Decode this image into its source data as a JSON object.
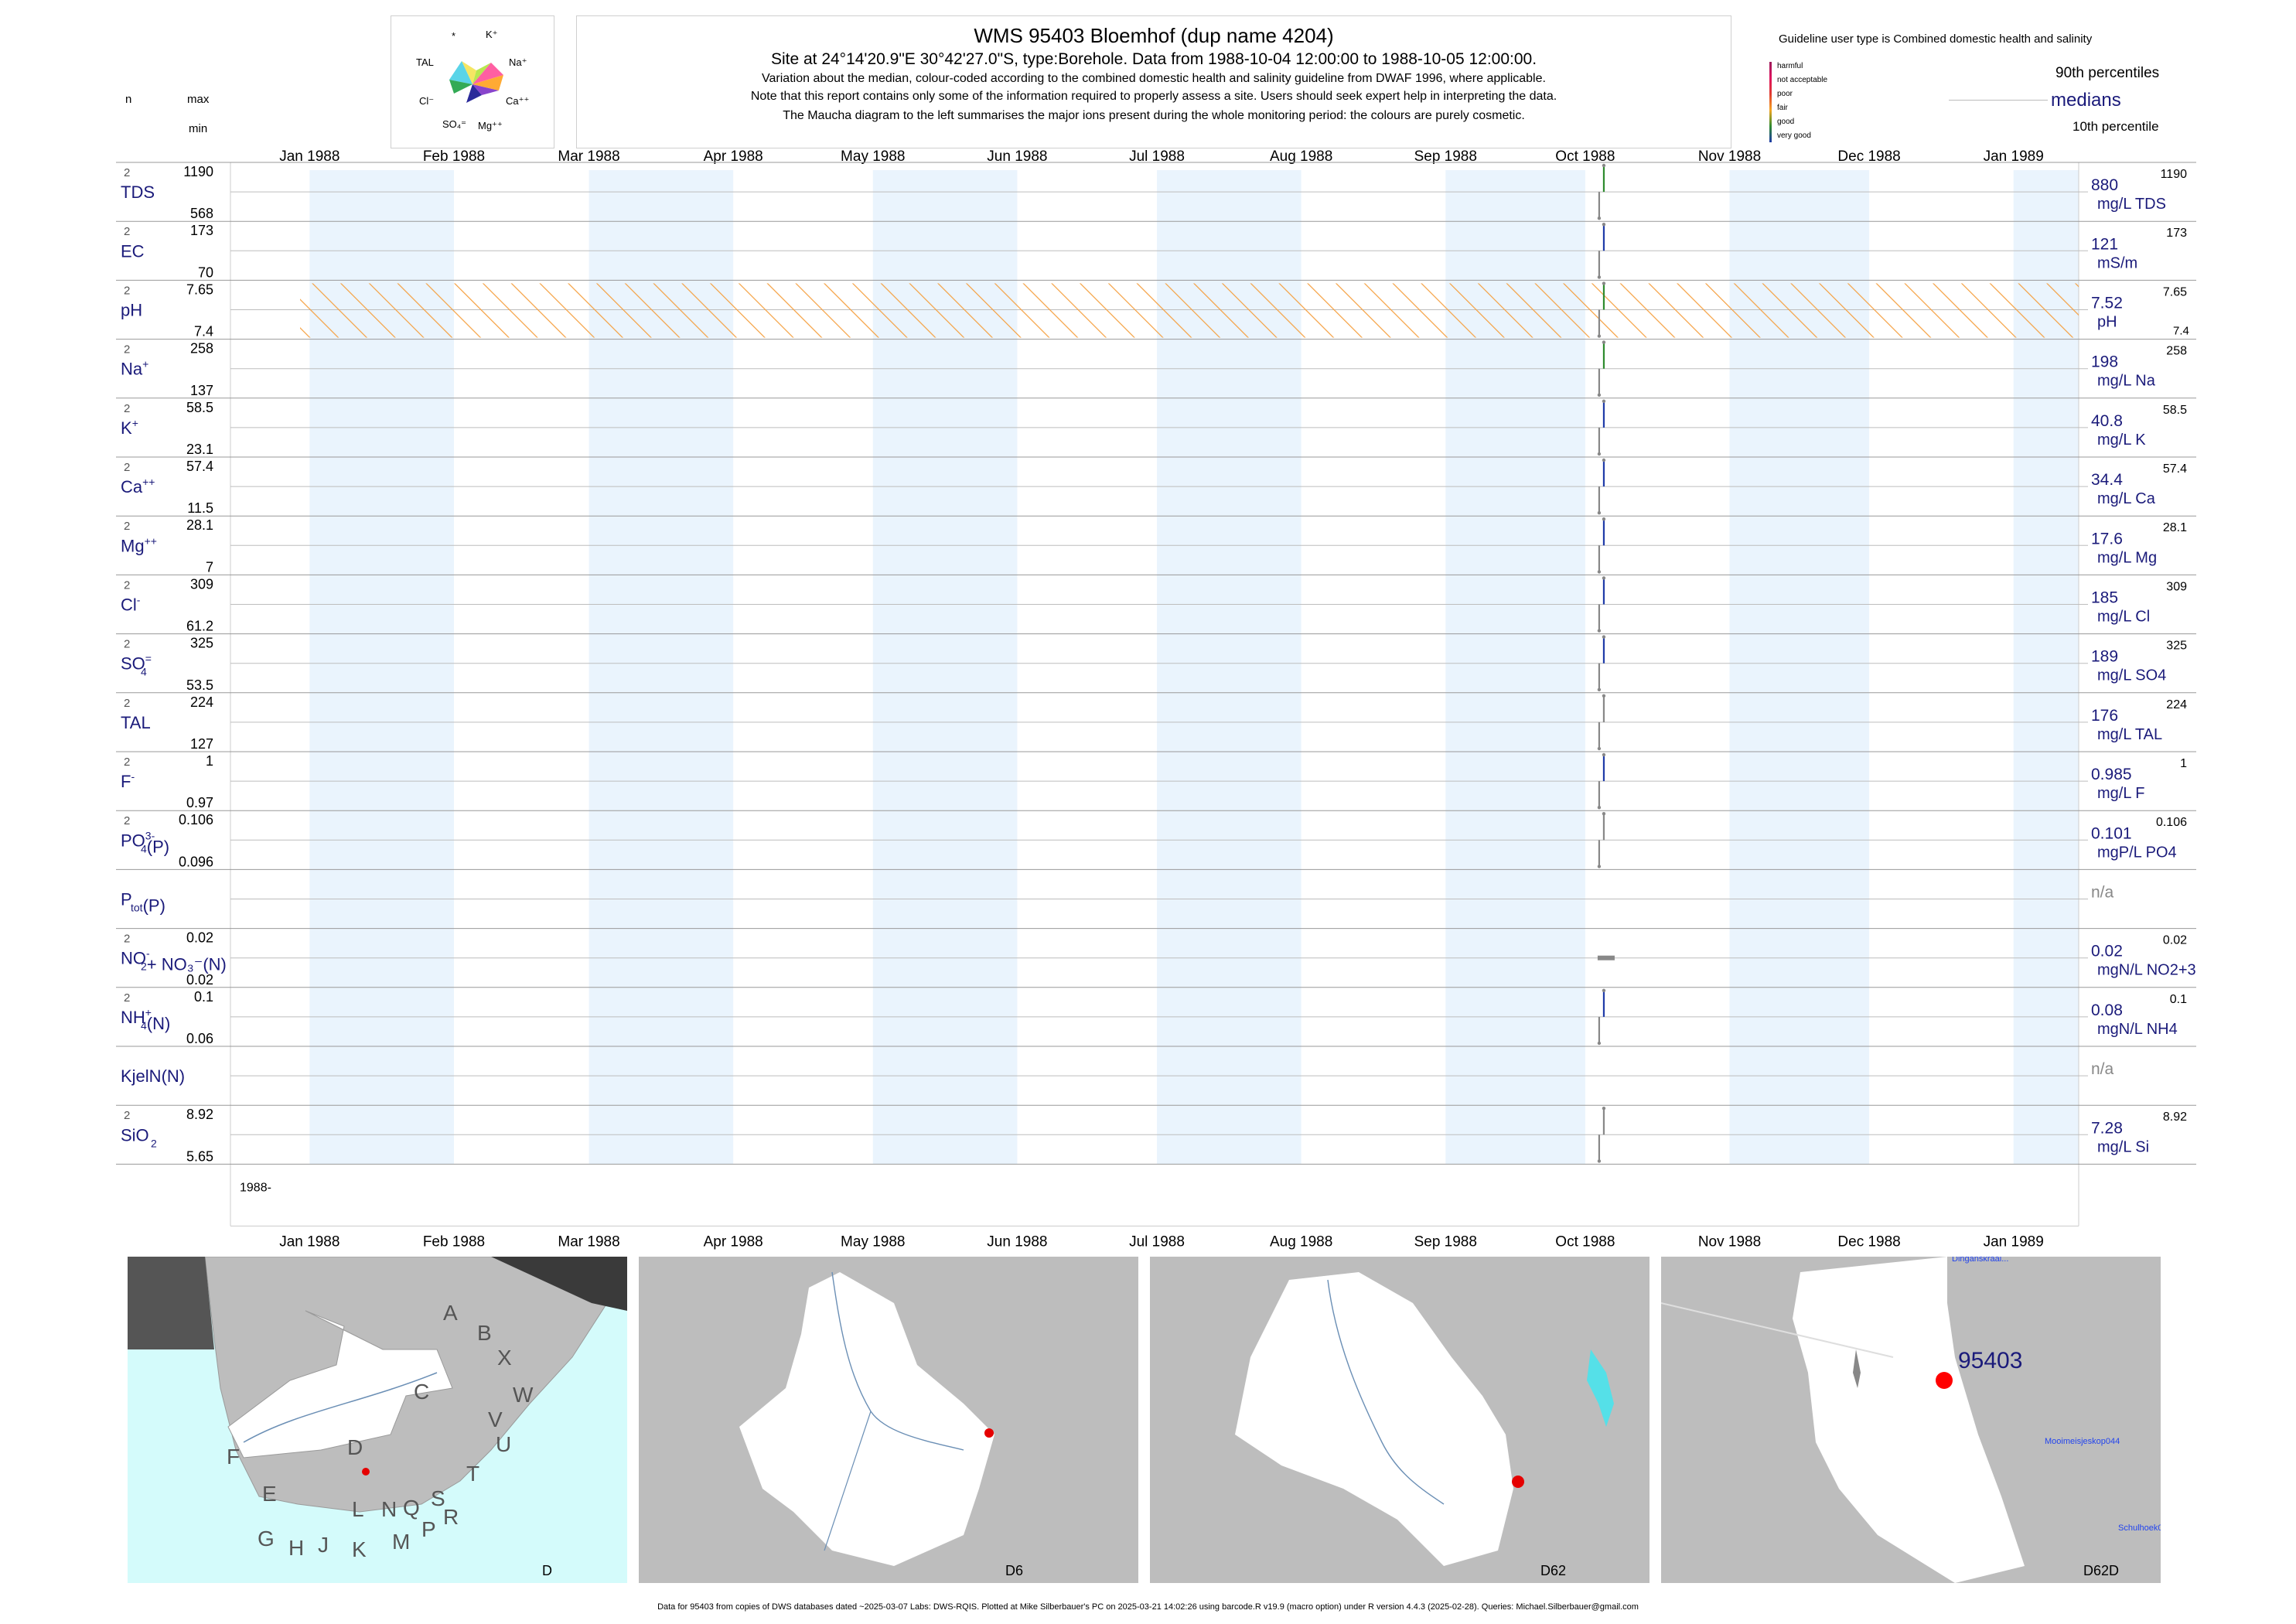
{
  "header": {
    "title": "WMS 95403  Bloemhof (dup name 4204)",
    "subtitle": "Site at 24°14'20.9\"E 30°42'27.0\"S, type:Borehole.  Data from 1988-10-04 12:00:00 to 1988-10-05 12:00:00.",
    "lines": [
      "Variation about the median,  colour-coded according to the combined domestic health and salinity guideline from DWAF 1996, where applicable.",
      "Note that this report contains only some of the information required to properly assess a site. Users should seek expert help in interpreting the data.",
      "The Maucha diagram to the left summarises the major ions present during the whole monitoring period: the colours are purely cosmetic."
    ]
  },
  "column_labels": {
    "n": "n",
    "max": "max",
    "min": "min"
  },
  "maucha": {
    "labels": [
      "*",
      "K⁺",
      "TAL",
      "Na⁺",
      "Cl⁻",
      "Ca⁺⁺",
      "SO₄⁼",
      "Mg⁺⁺"
    ],
    "colors": [
      "#f5e663",
      "#b8e84f",
      "#5ad4e8",
      "#ff5fa2",
      "#2a2a9a",
      "#33aa55",
      "#8844cc",
      "#ffaa33"
    ]
  },
  "legend": {
    "guideline_title": "Guideline user type is Combined domestic health and salinity",
    "classes": [
      {
        "label": "harmful",
        "color": "#9b1b5a"
      },
      {
        "label": "not acceptable",
        "color": "#e0115f"
      },
      {
        "label": "poor",
        "color": "#e03c31"
      },
      {
        "label": "fair",
        "color": "#f5a623"
      },
      {
        "label": "good",
        "color": "#2e8b2e"
      },
      {
        "label": "very good",
        "color": "#1f3ba8"
      }
    ],
    "p90": "90th percentiles",
    "median": "medians",
    "p10": "10th percentile"
  },
  "chart_data": {
    "type": "line",
    "x_axis": {
      "range": [
        "1987-12-15",
        "1989-01-15"
      ],
      "tick_labels": [
        "Jan 1988",
        "Feb 1988",
        "Mar 1988",
        "Apr 1988",
        "May 1988",
        "Jun 1988",
        "Jul 1988",
        "Aug 1988",
        "Sep 1988",
        "Oct 1988",
        "Nov 1988",
        "Dec 1988",
        "Jan 1989"
      ],
      "year_label": "1988-"
    },
    "series": [
      {
        "label": "TDS",
        "sup": "",
        "sub": "",
        "n": "2",
        "max": "1190",
        "min": "568",
        "median": "880",
        "unit": "mg/L TDS",
        "rmax": "1190",
        "rmin": "",
        "guide": "#2e8b2e",
        "hatch": false,
        "marker": "line",
        "points": [
          {
            "date": "1988-10-04",
            "value": 568
          },
          {
            "date": "1988-10-05",
            "value": 1190
          }
        ]
      },
      {
        "label": "EC",
        "sup": "",
        "sub": "",
        "n": "2",
        "max": "173",
        "min": "70",
        "median": "121",
        "unit": "mS/m",
        "rmax": "173",
        "rmin": "",
        "guide": "#1f3ba8",
        "hatch": false,
        "marker": "line",
        "points": [
          {
            "date": "1988-10-04",
            "value": 70
          },
          {
            "date": "1988-10-05",
            "value": 173
          }
        ]
      },
      {
        "label": "pH",
        "sup": "",
        "sub": "",
        "n": "2",
        "max": "7.65",
        "min": "7.4",
        "median": "7.52",
        "unit": "pH",
        "rmax": "7.65",
        "rmin": "7.4",
        "guide": "#2e8b2e",
        "hatch": true,
        "marker": "line",
        "points": [
          {
            "date": "1988-10-04",
            "value": 7.4
          },
          {
            "date": "1988-10-05",
            "value": 7.65
          }
        ]
      },
      {
        "label": "Na",
        "sup": "+",
        "sub": "",
        "n": "2",
        "max": "258",
        "min": "137",
        "median": "198",
        "unit": "mg/L Na",
        "rmax": "258",
        "rmin": "",
        "guide": "#2e8b2e",
        "hatch": false,
        "marker": "line",
        "points": [
          {
            "date": "1988-10-04",
            "value": 137
          },
          {
            "date": "1988-10-05",
            "value": 258
          }
        ]
      },
      {
        "label": "K",
        "sup": "+",
        "sub": "",
        "n": "2",
        "max": "58.5",
        "min": "23.1",
        "median": "40.8",
        "unit": "mg/L K",
        "rmax": "58.5",
        "rmin": "",
        "guide": "#1f3ba8",
        "hatch": false,
        "marker": "line",
        "points": [
          {
            "date": "1988-10-04",
            "value": 23.1
          },
          {
            "date": "1988-10-05",
            "value": 58.5
          }
        ]
      },
      {
        "label": "Ca",
        "sup": "++",
        "sub": "",
        "n": "2",
        "max": "57.4",
        "min": "11.5",
        "median": "34.4",
        "unit": "mg/L Ca",
        "rmax": "57.4",
        "rmin": "",
        "guide": "#1f3ba8",
        "hatch": false,
        "marker": "line",
        "points": [
          {
            "date": "1988-10-04",
            "value": 11.5
          },
          {
            "date": "1988-10-05",
            "value": 57.4
          }
        ]
      },
      {
        "label": "Mg",
        "sup": "++",
        "sub": "",
        "n": "2",
        "max": "28.1",
        "min": "7",
        "median": "17.6",
        "unit": "mg/L Mg",
        "rmax": "28.1",
        "rmin": "",
        "guide": "#1f3ba8",
        "hatch": false,
        "marker": "line",
        "points": [
          {
            "date": "1988-10-04",
            "value": 7
          },
          {
            "date": "1988-10-05",
            "value": 28.1
          }
        ]
      },
      {
        "label": "Cl",
        "sup": "-",
        "sub": "",
        "n": "2",
        "max": "309",
        "min": "61.2",
        "median": "185",
        "unit": "mg/L Cl",
        "rmax": "309",
        "rmin": "",
        "guide": "#1f3ba8",
        "hatch": false,
        "marker": "line",
        "points": [
          {
            "date": "1988-10-04",
            "value": 61.2
          },
          {
            "date": "1988-10-05",
            "value": 309
          }
        ]
      },
      {
        "label": "SO",
        "sup": "=",
        "sub": "4",
        "n": "2",
        "max": "325",
        "min": "53.5",
        "median": "189",
        "unit": "mg/L SO4",
        "rmax": "325",
        "rmin": "",
        "guide": "#1f3ba8",
        "hatch": false,
        "marker": "line",
        "points": [
          {
            "date": "1988-10-04",
            "value": 53.5
          },
          {
            "date": "1988-10-05",
            "value": 325
          }
        ]
      },
      {
        "label": "TAL",
        "sup": "",
        "sub": "",
        "n": "2",
        "max": "224",
        "min": "127",
        "median": "176",
        "unit": "mg/L TAL",
        "rmax": "224",
        "rmin": "",
        "guide": "#888888",
        "hatch": false,
        "marker": "line",
        "points": [
          {
            "date": "1988-10-04",
            "value": 127
          },
          {
            "date": "1988-10-05",
            "value": 224
          }
        ]
      },
      {
        "label": "F",
        "sup": "-",
        "sub": "",
        "n": "2",
        "max": "1",
        "min": "0.97",
        "median": "0.985",
        "unit": "mg/L F",
        "rmax": "1",
        "rmin": "",
        "guide": "#1f3ba8",
        "hatch": false,
        "marker": "line",
        "points": [
          {
            "date": "1988-10-04",
            "value": 0.97
          },
          {
            "date": "1988-10-05",
            "value": 1
          }
        ]
      },
      {
        "label": "PO",
        "sup": "3-",
        "sub": "4",
        "suffix": "(P)",
        "n": "2",
        "max": "0.106",
        "min": "0.096",
        "median": "0.101",
        "unit": "mgP/L PO4",
        "rmax": "0.106",
        "rmin": "",
        "guide": "#888888",
        "hatch": false,
        "marker": "line",
        "points": [
          {
            "date": "1988-10-04",
            "value": 0.096
          },
          {
            "date": "1988-10-05",
            "value": 0.106
          }
        ]
      },
      {
        "label": "P",
        "sup": "",
        "sub": "tot",
        "suffix": "(P)",
        "n": "",
        "max": "",
        "min": "",
        "median": "n/a",
        "unit": "",
        "rmax": "",
        "rmin": "",
        "guide": "#888888",
        "hatch": false,
        "marker": "none",
        "points": []
      },
      {
        "label": "NO",
        "sup": "-",
        "sub": "2",
        "suffix": "+ NO₃⁻(N)",
        "n": "2",
        "max": "0.02",
        "min": "0.02",
        "median": "0.02",
        "unit": "mgN/L NO2+3",
        "rmax": "0.02",
        "rmin": "",
        "guide": "#888888",
        "hatch": false,
        "marker": "flat",
        "points": [
          {
            "date": "1988-10-04",
            "value": 0.02
          },
          {
            "date": "1988-10-05",
            "value": 0.02
          }
        ]
      },
      {
        "label": "NH",
        "sup": "+",
        "sub": "4",
        "suffix": "(N)",
        "n": "2",
        "max": "0.1",
        "min": "0.06",
        "median": "0.08",
        "unit": "mgN/L NH4",
        "rmax": "0.1",
        "rmin": "",
        "guide": "#1f3ba8",
        "hatch": false,
        "marker": "line",
        "points": [
          {
            "date": "1988-10-04",
            "value": 0.06
          },
          {
            "date": "1988-10-05",
            "value": 0.1
          }
        ]
      },
      {
        "label": "KjelN(N)",
        "sup": "",
        "sub": "",
        "n": "",
        "max": "",
        "min": "",
        "median": "n/a",
        "unit": "",
        "rmax": "",
        "rmin": "",
        "guide": "#888888",
        "hatch": false,
        "marker": "none",
        "points": []
      },
      {
        "label": "SiO",
        "sup": "",
        "sub": "2",
        "n": "2",
        "max": "8.92",
        "min": "5.65",
        "median": "7.28",
        "unit": "mg/L Si",
        "rmax": "8.92",
        "rmin": "",
        "guide": "#888888",
        "hatch": false,
        "marker": "line",
        "points": [
          {
            "date": "1988-10-04",
            "value": 5.65
          },
          {
            "date": "1988-10-05",
            "value": 8.92
          }
        ]
      }
    ]
  },
  "maps": [
    {
      "label": "D",
      "letters": [
        "A",
        "B",
        "X",
        "W",
        "C",
        "V",
        "U",
        "D",
        "T",
        "F",
        "E",
        "S",
        "R",
        "Q",
        "N",
        "L",
        "P",
        "M",
        "K",
        "J",
        "H",
        "G"
      ]
    },
    {
      "label": "D6"
    },
    {
      "label": "D62"
    },
    {
      "label": "D62D",
      "site": "95403",
      "places": [
        "Mooimeisjeskop044",
        "Schulhoek0",
        "Dinganskraal..."
      ]
    }
  ],
  "footer": "Data for 95403 from copies of DWS databases dated ~2025-03-07 Labs: DWS-RQIS. Plotted at Mike Silberbauer's PC on 2025-03-21 14:02:26 using barcode.R v19.9 (macro option) under R version 4.4.3 (2025-02-28). Queries: Michael.Silberbauer@gmail.com"
}
